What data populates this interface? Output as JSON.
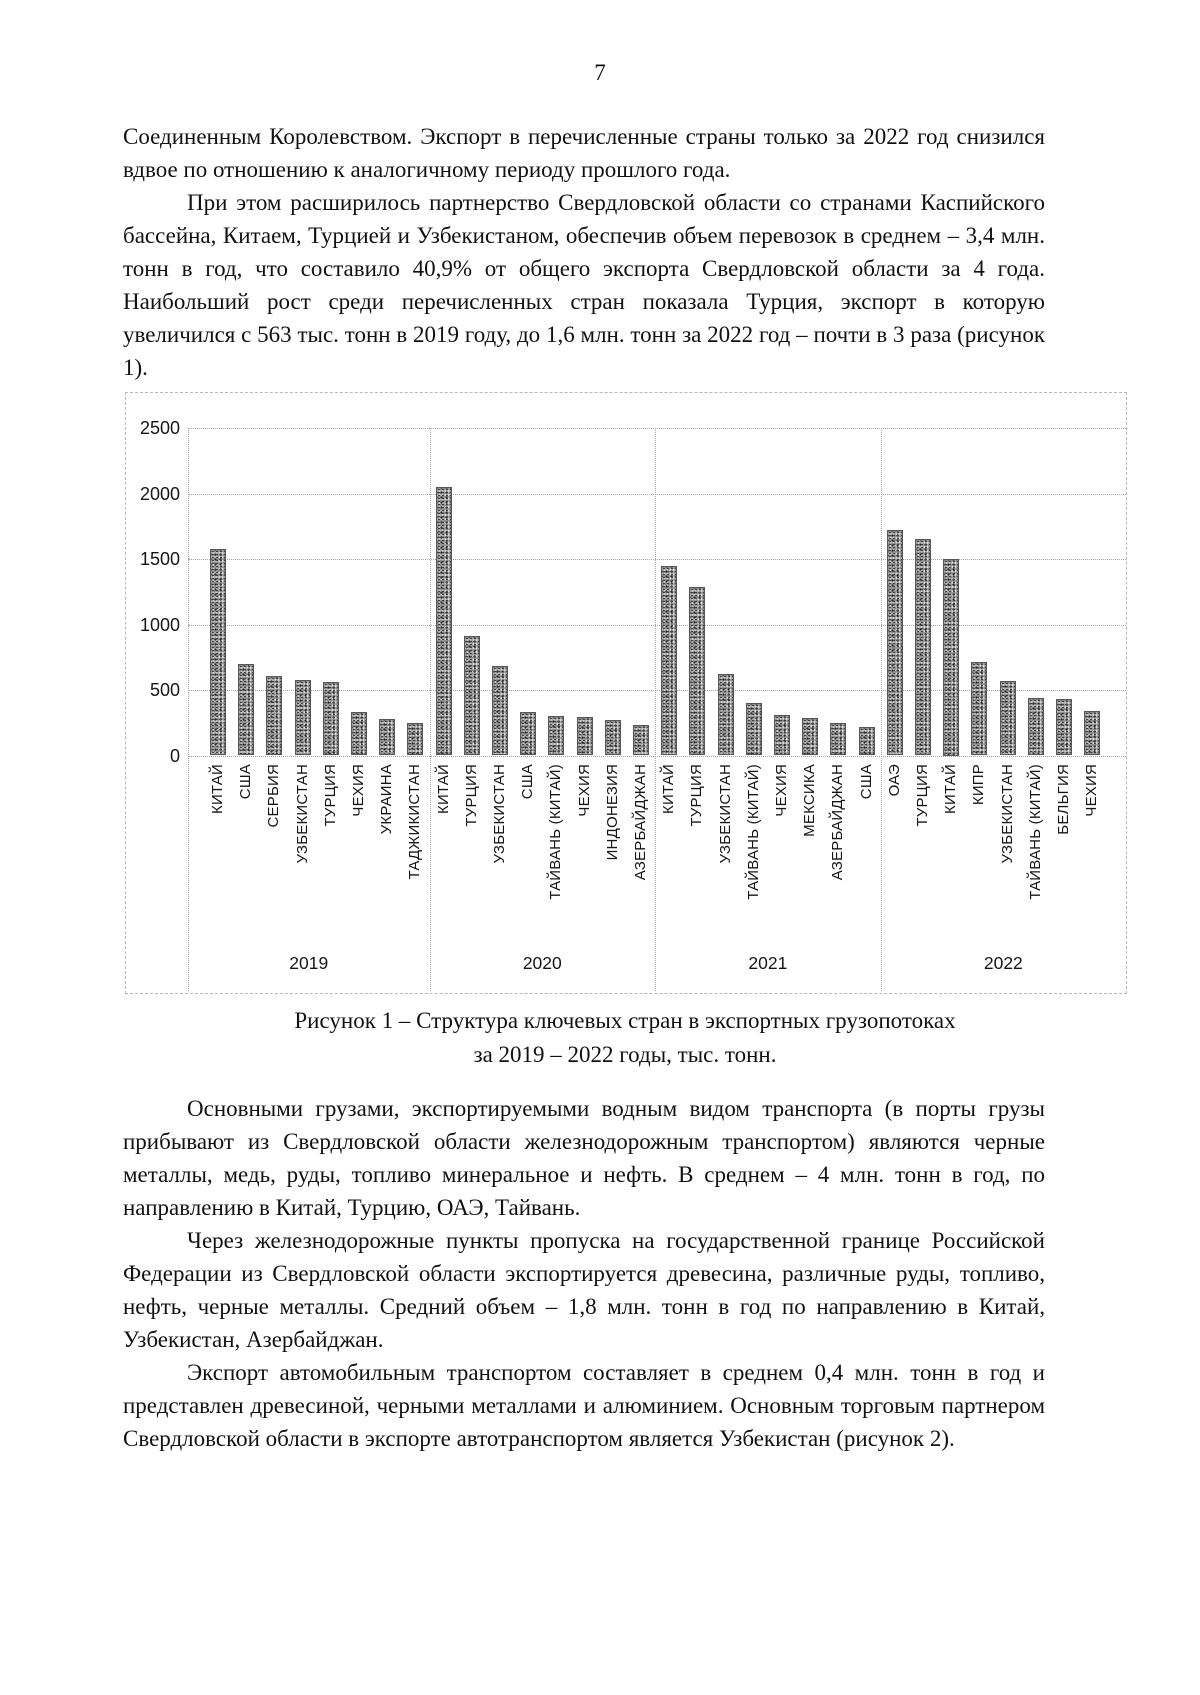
{
  "page": {
    "number": "7"
  },
  "paragraphs": {
    "p1": "Соединенным Королевством. Экспорт в перечисленные страны только за 2022 год снизился вдвое по отношению к аналогичному периоду прошлого года.",
    "p2": "При этом расширилось партнерство Свердловской области со странами Каспийского бассейна, Китаем, Турцией и Узбекистаном, обеспечив объем перевозок в среднем – 3,4 млн. тонн в год, что составило 40,9% от общего экспорта Свердловской области за 4 года. Наибольший рост среди перечисленных стран показала Турция, экспорт в которую увеличился с 563 тыс. тонн в 2019 году, до 1,6 млн. тонн за 2022 год – почти в 3 раза (рисунок 1).",
    "p3": "Основными грузами, экспортируемыми водным видом транспорта (в порты грузы прибывают из Свердловской области железнодорожным транспортом) являются черные металлы, медь, руды, топливо минеральное и нефть. В среднем – 4 млн. тонн в год, по направлению в Китай, Турцию, ОАЭ, Тайвань.",
    "p4": "Через железнодорожные пункты пропуска на государственной границе Российской Федерации из Свердловской области экспортируется древесина, различные руды, топливо, нефть, черные металлы. Средний объем – 1,8 млн. тонн в год по направлению в Китай, Узбекистан, Азербайджан.",
    "p5": "Экспорт автомобильным транспортом составляет в среднем 0,4 млн. тонн в год и представлен древесиной, черными металлами и алюминием. Основным торговым партнером Свердловской области в экспорте автотранспортом является Узбекистан (рисунок 2)."
  },
  "figure": {
    "caption_line1": "Рисунок 1 – Структура ключевых стран в экспортных грузопотоках",
    "caption_line2": "за 2019 – 2022 годы, тыс. тонн."
  },
  "chart_data": {
    "type": "bar",
    "title": "",
    "xlabel": "",
    "ylabel": "",
    "unit": "тыс. тонн",
    "ylim": [
      0,
      2500
    ],
    "yticks": [
      0,
      500,
      1000,
      1500,
      2000,
      2500
    ],
    "grid": true,
    "legend": false,
    "bar_color": "#909090",
    "groups": [
      {
        "year": "2019",
        "bars": [
          {
            "label": "КИТАЙ",
            "value": 1580
          },
          {
            "label": "США",
            "value": 700
          },
          {
            "label": "СЕРБИЯ",
            "value": 610
          },
          {
            "label": "УЗБЕКИСТАН",
            "value": 575
          },
          {
            "label": "ТУРЦИЯ",
            "value": 563
          },
          {
            "label": "ЧЕХИЯ",
            "value": 330
          },
          {
            "label": "УКРАИНА",
            "value": 280
          },
          {
            "label": "ТАДЖИКИСТАН",
            "value": 245
          }
        ]
      },
      {
        "year": "2020",
        "bars": [
          {
            "label": "КИТАЙ",
            "value": 2050
          },
          {
            "label": "ТУРЦИЯ",
            "value": 910
          },
          {
            "label": "УЗБЕКИСТАН",
            "value": 680
          },
          {
            "label": "США",
            "value": 335
          },
          {
            "label": "ТАЙВАНЬ (КИТАЙ)",
            "value": 305
          },
          {
            "label": "ЧЕХИЯ",
            "value": 295
          },
          {
            "label": "ИНДОНЕЗИЯ",
            "value": 270
          },
          {
            "label": "АЗЕРБАЙДЖАН",
            "value": 230
          }
        ]
      },
      {
        "year": "2021",
        "bars": [
          {
            "label": "КИТАЙ",
            "value": 1450
          },
          {
            "label": "ТУРЦИЯ",
            "value": 1290
          },
          {
            "label": "УЗБЕКИСТАН",
            "value": 620
          },
          {
            "label": "ТАЙВАНЬ (КИТАЙ)",
            "value": 400
          },
          {
            "label": "ЧЕХИЯ",
            "value": 310
          },
          {
            "label": "МЕКСИКА",
            "value": 285
          },
          {
            "label": "АЗЕРБАЙДЖАН",
            "value": 245
          },
          {
            "label": "США",
            "value": 215
          }
        ]
      },
      {
        "year": "2022",
        "bars": [
          {
            "label": "ОАЭ",
            "value": 1720
          },
          {
            "label": "ТУРЦИЯ",
            "value": 1650
          },
          {
            "label": "КИТАЙ",
            "value": 1500
          },
          {
            "label": "КИПР",
            "value": 710
          },
          {
            "label": "УЗБЕКИСТАН",
            "value": 565
          },
          {
            "label": "ТАЙВАНЬ (КИТАЙ)",
            "value": 440
          },
          {
            "label": "БЕЛЬГИЯ",
            "value": 430
          },
          {
            "label": "ЧЕХИЯ",
            "value": 340
          }
        ]
      }
    ]
  }
}
